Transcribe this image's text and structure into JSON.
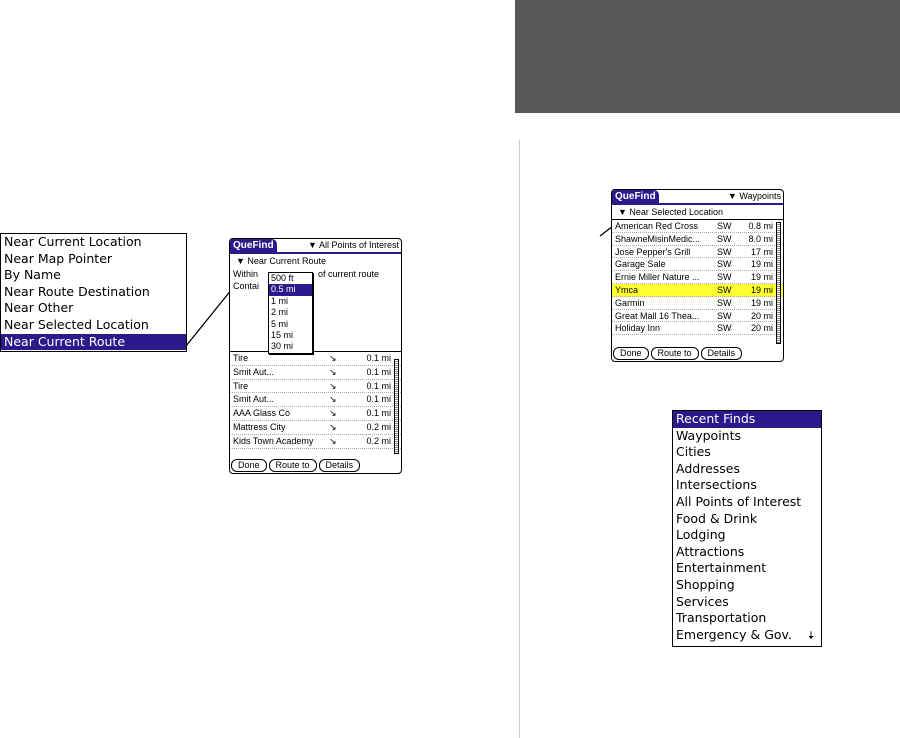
{
  "left_menu": {
    "items": [
      "Near Current Location",
      "Near Map Pointer",
      "By Name",
      "Near Route Destination",
      "Near Other",
      "Near Selected Location",
      "Near Current Route"
    ],
    "selected": 6
  },
  "left_screen": {
    "title": "QueFind",
    "category": "All Points of Interest",
    "search": "Near Current Route",
    "within_label": "Within",
    "within_suffix": "of current route",
    "contains_label": "Contai",
    "distance_options": [
      "500 ft",
      "0.5 mi",
      "1 mi",
      "2 mi",
      "5 mi",
      "15 mi",
      "30 mi"
    ],
    "selected_option": 1,
    "rows": [
      {
        "name": "Tire",
        "dist": "0.1 mi"
      },
      {
        "name": "Smit           Aut...",
        "dist": "0.1 mi"
      },
      {
        "name": "Tire",
        "dist": "0.1 mi"
      },
      {
        "name": "Smit           Aut...",
        "dist": "0.1 mi"
      },
      {
        "name": "AAA Glass Co",
        "dist": "0.1 mi"
      },
      {
        "name": "Mattress City",
        "dist": "0.2 mi"
      },
      {
        "name": "Kids Town Academy",
        "dist": "0.2 mi"
      }
    ],
    "buttons": [
      "Done",
      "Route to",
      "Details"
    ]
  },
  "right_screen": {
    "title": "QueFind",
    "category": "Waypoints",
    "search": "Near Selected Location",
    "rows": [
      {
        "name": "American Red Cross",
        "dir": "SW",
        "dist": "0.8 mi"
      },
      {
        "name": "ShawneMisinMedic...",
        "dir": "SW",
        "dist": "8.0 mi"
      },
      {
        "name": "Jose Pepper's Grill",
        "dir": "SW",
        "dist": "17 mi"
      },
      {
        "name": "Garage Sale",
        "dir": "SW",
        "dist": "19 mi"
      },
      {
        "name": "Ernie Miller Nature ...",
        "dir": "SW",
        "dist": "19 mi"
      },
      {
        "name": "Ymca",
        "dir": "SW",
        "dist": "19 mi"
      },
      {
        "name": "Garmin",
        "dir": "SW",
        "dist": "19 mi"
      },
      {
        "name": "Great Mall 16 Thea...",
        "dir": "SW",
        "dist": "20 mi"
      },
      {
        "name": "Holiday Inn",
        "dir": "SW",
        "dist": "20 mi"
      }
    ],
    "highlighted": 5,
    "buttons": [
      "Done",
      "Route to",
      "Details"
    ]
  },
  "right_menu": {
    "items": [
      "Recent Finds",
      "Waypoints",
      "Cities",
      "Addresses",
      "Intersections",
      "All Points of Interest",
      "Food & Drink",
      "Lodging",
      "Attractions",
      "Entertainment",
      "Shopping",
      "Services",
      "Transportation",
      "Emergency & Gov."
    ],
    "selected": 0
  },
  "colors": {
    "accent": "#2c1a8c",
    "highlight": "#ffff33",
    "header": "#595657"
  }
}
